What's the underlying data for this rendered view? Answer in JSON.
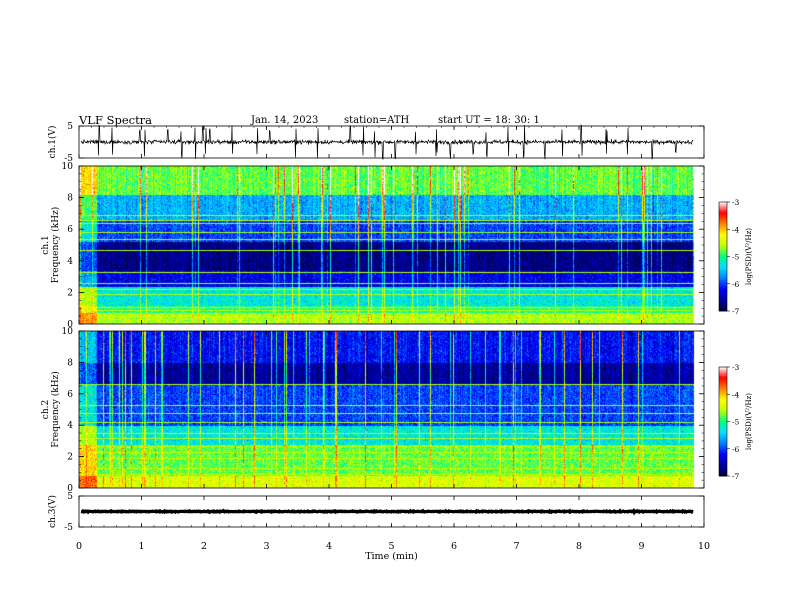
{
  "header": {
    "title": "VLF  Spectra",
    "date": "Jan. 14, 2023",
    "station": "station=ATH",
    "start": "start  UT  =   18: 30: 1"
  },
  "chart_data": [
    {
      "type": "line",
      "name": "ch1-waveform",
      "ylabel": "ch.1(V)",
      "ylim": [
        -5,
        5
      ],
      "yticks": [
        "5",
        "-5"
      ],
      "xlim": [
        0,
        10
      ],
      "data_extent_min": 9.83,
      "baseline": 0,
      "noise_amplitude": 0.6,
      "spike_times": [
        0.32,
        0.53,
        0.97,
        1.05,
        1.42,
        1.64,
        1.86,
        1.98,
        2.03,
        2.09,
        2.45,
        2.85,
        3.05,
        3.47,
        3.82,
        4.34,
        4.55,
        4.73,
        4.86,
        5.06,
        5.39,
        5.72,
        5.94,
        6.31,
        6.52,
        6.87,
        7.12,
        7.45,
        7.73,
        8.04,
        8.44,
        8.78,
        9.17,
        9.55
      ]
    },
    {
      "type": "heatmap",
      "name": "ch1-spectrogram",
      "ylabel": "ch.1\nFrequency  (kHz)",
      "ylim": [
        0,
        10
      ],
      "yticks": [
        "0",
        "2",
        "4",
        "6",
        "8",
        "10"
      ],
      "xlim": [
        0,
        10
      ],
      "data_extent_min": 9.83,
      "colorbar_label": "log(PSD)(V²/Hz)",
      "colorbar_range": [
        -7,
        -3
      ],
      "colorbar_ticks": [
        "-3",
        "-4",
        "-5",
        "-6",
        "-7"
      ],
      "bands_khz": [
        {
          "f0": 0,
          "f1": 0.7,
          "level": -4.6
        },
        {
          "f0": 0.7,
          "f1": 1.2,
          "level": -5.0
        },
        {
          "f0": 1.2,
          "f1": 2.4,
          "level": -5.3
        },
        {
          "f0": 2.4,
          "f1": 3.4,
          "level": -6.3
        },
        {
          "f0": 3.4,
          "f1": 5.2,
          "level": -6.7
        },
        {
          "f0": 5.2,
          "f1": 6.6,
          "level": -6.0
        },
        {
          "f0": 6.6,
          "f1": 8.2,
          "level": -5.6
        },
        {
          "f0": 8.2,
          "f1": 10,
          "level": -4.8
        }
      ],
      "lines_khz": [
        0.3,
        0.5,
        0.9,
        1.1,
        1.9,
        2.2,
        2.6,
        3.3,
        4.7,
        5.4,
        5.8,
        6.4,
        6.6,
        6.9
      ]
    },
    {
      "type": "heatmap",
      "name": "ch2-spectrogram",
      "ylabel": "ch.2\nFrequency  (kHz)",
      "ylim": [
        0,
        10
      ],
      "yticks": [
        "0",
        "2",
        "4",
        "6",
        "8",
        "10"
      ],
      "xlim": [
        0,
        10
      ],
      "data_extent_min": 9.83,
      "colorbar_label": "log(PSD)(V²/Hz)",
      "colorbar_range": [
        -7,
        -3
      ],
      "colorbar_ticks": [
        "-3",
        "-4",
        "-5",
        "-6",
        "-7"
      ],
      "bands_khz": [
        {
          "f0": 0,
          "f1": 0.8,
          "level": -4.4
        },
        {
          "f0": 0.8,
          "f1": 2.8,
          "level": -4.8
        },
        {
          "f0": 2.8,
          "f1": 4.0,
          "level": -5.3
        },
        {
          "f0": 4.0,
          "f1": 6.6,
          "level": -6.0
        },
        {
          "f0": 6.6,
          "f1": 8.0,
          "level": -6.6
        },
        {
          "f0": 8.0,
          "f1": 10,
          "level": -6.2
        }
      ],
      "lines_khz": [
        0.6,
        0.9,
        1.3,
        1.9,
        2.3,
        2.7,
        3.2,
        3.5,
        4.2,
        4.8,
        5.3,
        6.6
      ]
    },
    {
      "type": "line",
      "name": "ch3-waveform",
      "ylabel": "ch.3(V)",
      "ylim": [
        -5,
        5
      ],
      "yticks": [
        "5",
        "-5"
      ],
      "xlim": [
        0,
        10
      ],
      "data_extent_min": 9.83,
      "baseline": 0,
      "noise_amplitude": 0.15
    }
  ],
  "xaxis": {
    "label": "Time  (min)",
    "ticks": [
      "0",
      "1",
      "2",
      "3",
      "4",
      "5",
      "6",
      "7",
      "8",
      "9",
      "10"
    ]
  },
  "colors": {
    "colormap": [
      "#000033",
      "#0000a0",
      "#0000ff",
      "#0080ff",
      "#00e0ff",
      "#00ff80",
      "#c0ff00",
      "#ffff00",
      "#ff8000",
      "#ff0000",
      "#ffffff"
    ]
  }
}
